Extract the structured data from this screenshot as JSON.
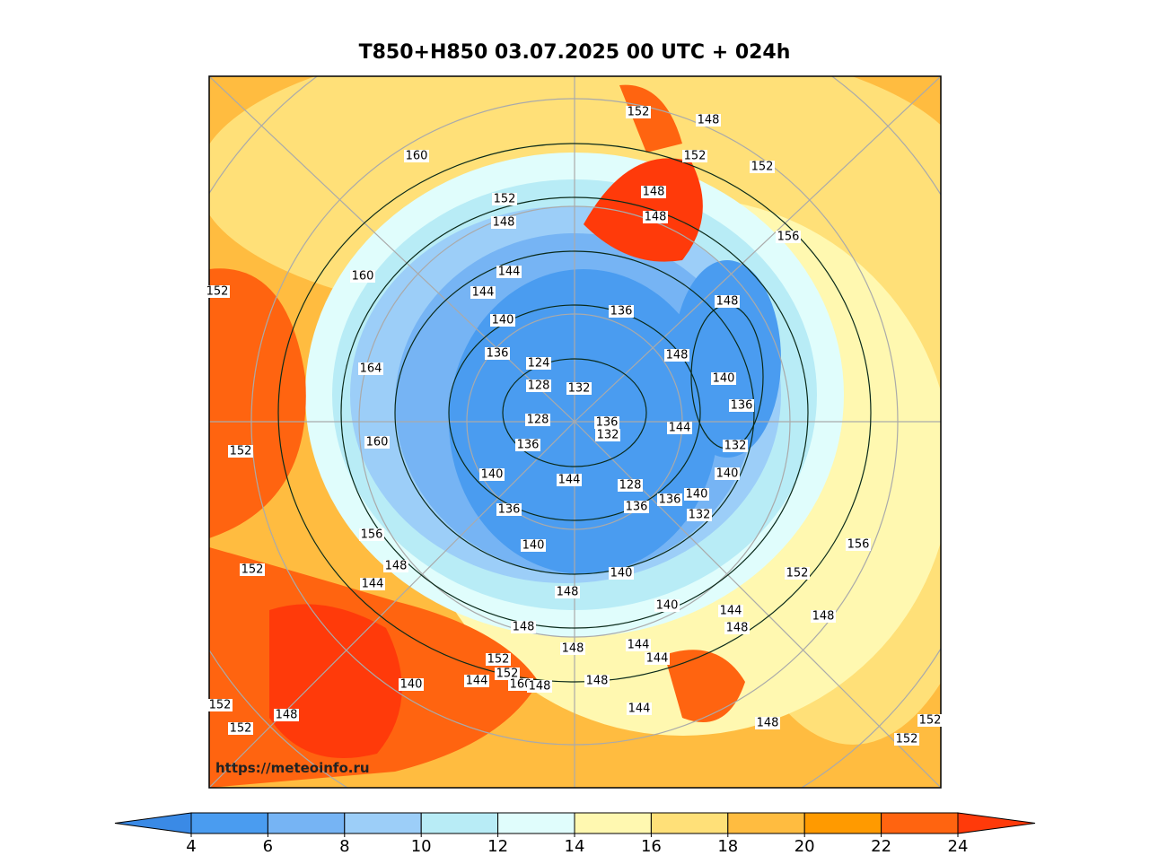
{
  "title": "T850+H850 03.07.2025 00 UTC + 024h",
  "watermark": "https://meteoinfo.ru",
  "colorbar": {
    "ticks": [
      4,
      6,
      8,
      10,
      12,
      14,
      16,
      18,
      20,
      22,
      24
    ],
    "under_color": "#3a8ae6",
    "colors": [
      "#4a9cf0",
      "#76b4f4",
      "#9ccef8",
      "#b8ecf6",
      "#e0fdfc",
      "#fff8b0",
      "#ffe078",
      "#ffbc40",
      "#ff9a00",
      "#ff6410"
    ],
    "over_color": "#ff3a0a"
  },
  "contour_labels": [
    152,
    148,
    152,
    152,
    160,
    152,
    148,
    148,
    148,
    156,
    160,
    152,
    144,
    144,
    140,
    136,
    148,
    164,
    136,
    124,
    148,
    128,
    132,
    140,
    136,
    136,
    132,
    144,
    128,
    160,
    152,
    136,
    132,
    140,
    140,
    144,
    128,
    136,
    140,
    136,
    136,
    132,
    156,
    156,
    140,
    152,
    148,
    152,
    144,
    140,
    148,
    140,
    144,
    148,
    148,
    148,
    148,
    144,
    144,
    152,
    152,
    160,
    148,
    140,
    144,
    148,
    144,
    152,
    148,
    152,
    148,
    152,
    152
  ]
}
